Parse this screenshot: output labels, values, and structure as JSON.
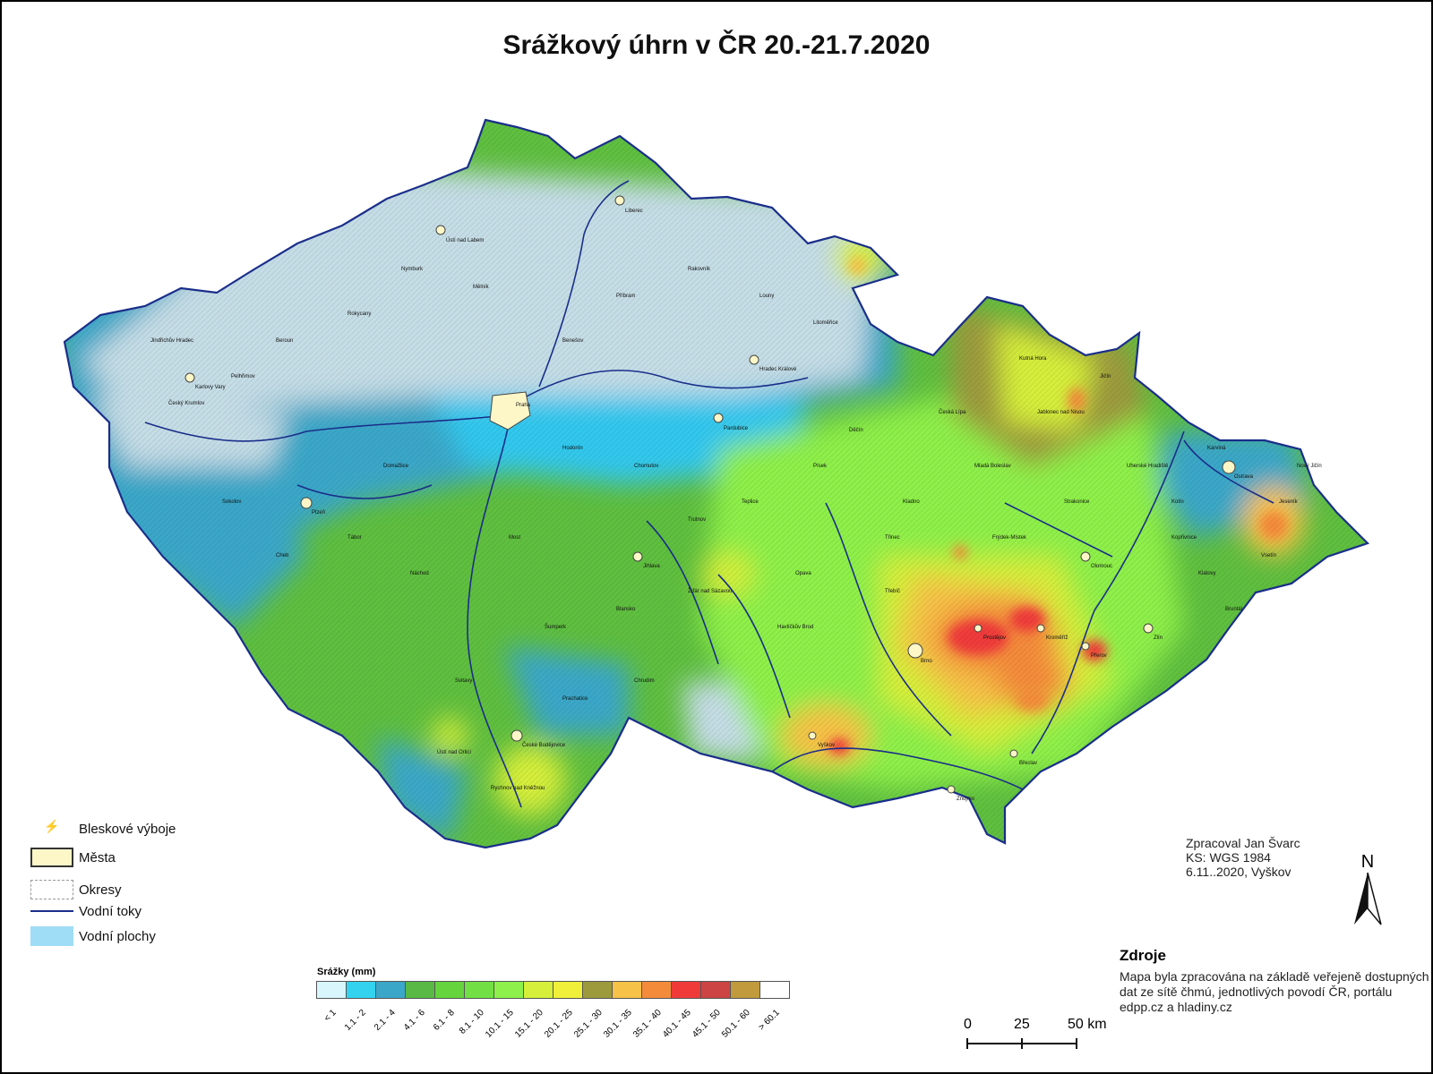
{
  "title": "Srážkový úhrn v ČR 20.-21.7.2020",
  "legend": {
    "lightning": "Bleskové výboje",
    "cities": "Města",
    "districts": "Okresy",
    "rivers": "Vodní toky",
    "water_bodies": "Vodní plochy"
  },
  "precip_scale": {
    "title": "Srážky (mm)",
    "classes": [
      {
        "label": "< 1",
        "color": "#d8f6fb"
      },
      {
        "label": "1.1 - 2",
        "color": "#33d3f0"
      },
      {
        "label": "2.1 - 4",
        "color": "#3aa7c8"
      },
      {
        "label": "4.1 - 6",
        "color": "#59b944"
      },
      {
        "label": "6.1 - 8",
        "color": "#66d43d"
      },
      {
        "label": "8.1 - 10",
        "color": "#72e044"
      },
      {
        "label": "10.1 - 15",
        "color": "#8ef04a"
      },
      {
        "label": "15.1 - 20",
        "color": "#d6ef3a"
      },
      {
        "label": "20.1 - 25",
        "color": "#f0f03a"
      },
      {
        "label": "25.1 - 30",
        "color": "#9c9a3c"
      },
      {
        "label": "30.1 - 35",
        "color": "#f6c247"
      },
      {
        "label": "35.1 - 40",
        "color": "#f48b3a"
      },
      {
        "label": "40.1 - 45",
        "color": "#f03a3a"
      },
      {
        "label": "45.1 - 50",
        "color": "#cc4444"
      },
      {
        "label": "50.1 - 60",
        "color": "#c09a3c"
      },
      {
        "label": "> 60.1",
        "color": "#ffffff"
      }
    ]
  },
  "credits": {
    "author": "Zpracoval Jan Švarc",
    "crs": "KS: WGS 1984",
    "date": "6.11..2020, Vyškov"
  },
  "sources": {
    "heading": "Zdroje",
    "text": "Mapa byla zpracována na základě veřejeně dostupných dat ze sítě čhmú, jednotlivých povodí ČR, portálu edpp.cz a hladiny.cz"
  },
  "north_arrow": "N",
  "scale_bar": {
    "labels": [
      "0",
      "25",
      "50 km"
    ]
  },
  "towns": [
    "Praha",
    "Brno",
    "Ostrava",
    "Plzeň",
    "Liberec",
    "Olomouc",
    "Ústí nad Labem",
    "Hradec Králové",
    "České Budějovice",
    "Pardubice",
    "Zlín",
    "Jihlava",
    "Karlovy Vary",
    "Kroměříž",
    "Přerov",
    "Prostějov",
    "Vyškov",
    "Znojmo",
    "Břeclav",
    "Hodonín",
    "Tábor",
    "Písek",
    "Kladno",
    "Mladá Boleslav",
    "Kolín",
    "Náchod",
    "Trutnov",
    "Opava",
    "Třinec",
    "Frýdek-Místek",
    "Uherské Hradiště",
    "Vsetín",
    "Šumperk",
    "Svitavy",
    "Chrudim",
    "Havlíčkův Brod",
    "Třebíč",
    "Strakonice",
    "Klatovy",
    "Domažlice",
    "Cheb",
    "Sokolov",
    "Chomutov",
    "Most",
    "Teplice",
    "Děčín",
    "Česká Lípa",
    "Jablonec nad Nisou",
    "Jičín",
    "Kutná Hora",
    "Benešov",
    "Příbram",
    "Rakovník",
    "Louny",
    "Litoměřice",
    "Mělník",
    "Nymburk",
    "Rokycany",
    "Beroun",
    "Pelhřimov",
    "Jindřichův Hradec",
    "Český Krumlov",
    "Prachatice",
    "Rychnov nad Kněžnou",
    "Ústí nad Orlicí",
    "Žďár nad Sázavou",
    "Blansko",
    "Bruntál",
    "Jeseník",
    "Nový Jičín",
    "Karviná",
    "Kopřivnice"
  ]
}
